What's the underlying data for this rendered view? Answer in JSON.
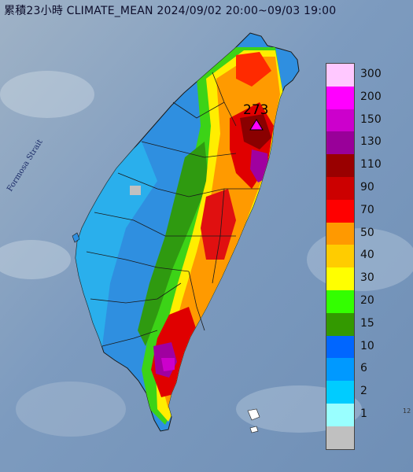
{
  "title": "累積23小時 CLIMATE_MEAN 2024/09/02 20:00~09/03 19:00",
  "strait_label": "Formosa Strait",
  "max_value_label": "273",
  "corner_label": "12",
  "legend": [
    {
      "label": "300",
      "color": "#ffc8ff"
    },
    {
      "label": "200",
      "color": "#ff00ff"
    },
    {
      "label": "150",
      "color": "#cc00cc"
    },
    {
      "label": "130",
      "color": "#990099"
    },
    {
      "label": "110",
      "color": "#990000"
    },
    {
      "label": "90",
      "color": "#cc0000"
    },
    {
      "label": "70",
      "color": "#ff0000"
    },
    {
      "label": "50",
      "color": "#ff9900"
    },
    {
      "label": "40",
      "color": "#ffcc00"
    },
    {
      "label": "30",
      "color": "#ffff00"
    },
    {
      "label": "20",
      "color": "#33ff00"
    },
    {
      "label": "15",
      "color": "#339900"
    },
    {
      "label": "10",
      "color": "#0066ff"
    },
    {
      "label": "6",
      "color": "#0099ff"
    },
    {
      "label": "2",
      "color": "#00ccff"
    },
    {
      "label": "1",
      "color": "#99ffff"
    },
    {
      "label": "",
      "color": "#c0c0c0"
    }
  ]
}
